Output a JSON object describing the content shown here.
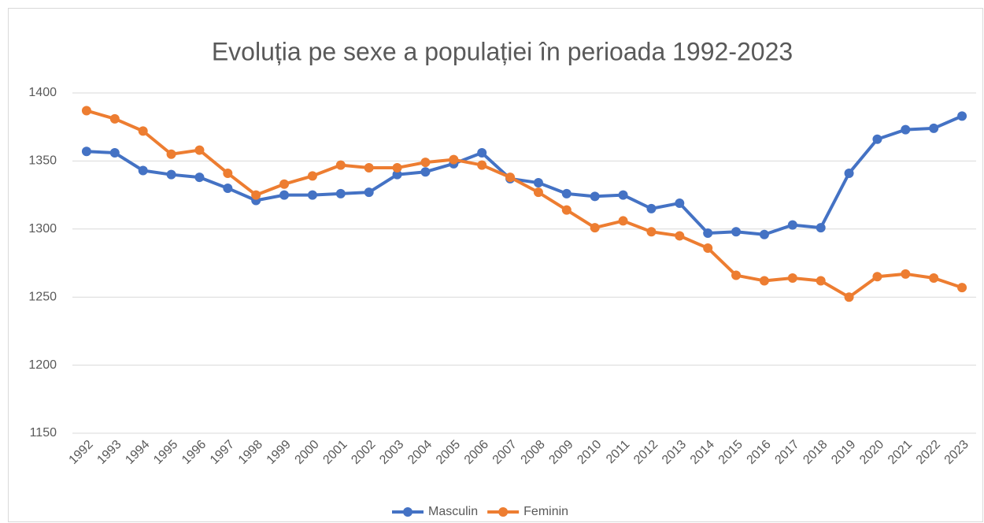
{
  "chart_data": {
    "type": "line",
    "title": "Evoluția pe sexe a populației în perioada 1992-2023",
    "categories": [
      "1992",
      "1993",
      "1994",
      "1995",
      "1996",
      "1997",
      "1998",
      "1999",
      "2000",
      "2001",
      "2002",
      "2003",
      "2004",
      "2005",
      "2006",
      "2007",
      "2008",
      "2009",
      "2010",
      "2011",
      "2012",
      "2013",
      "2014",
      "2015",
      "2016",
      "2017",
      "2018",
      "2019",
      "2020",
      "2021",
      "2022",
      "2023"
    ],
    "series": [
      {
        "name": "Masculin",
        "color": "#4472c4",
        "values": [
          1357,
          1356,
          1343,
          1340,
          1338,
          1330,
          1321,
          1325,
          1325,
          1326,
          1327,
          1340,
          1342,
          1348,
          1356,
          1337,
          1334,
          1326,
          1324,
          1325,
          1315,
          1319,
          1297,
          1298,
          1296,
          1303,
          1301,
          1341,
          1366,
          1373,
          1374,
          1383
        ]
      },
      {
        "name": "Feminin",
        "color": "#ed7d31",
        "values": [
          1387,
          1381,
          1372,
          1355,
          1358,
          1341,
          1325,
          1333,
          1339,
          1347,
          1345,
          1345,
          1349,
          1351,
          1347,
          1338,
          1327,
          1314,
          1301,
          1306,
          1298,
          1295,
          1286,
          1266,
          1262,
          1264,
          1262,
          1250,
          1265,
          1267,
          1264,
          1257
        ]
      }
    ],
    "ylim": [
      1150,
      1400
    ],
    "yticks": [
      1150,
      1200,
      1250,
      1300,
      1350,
      1400
    ],
    "grid": true,
    "legend": "bottom"
  }
}
